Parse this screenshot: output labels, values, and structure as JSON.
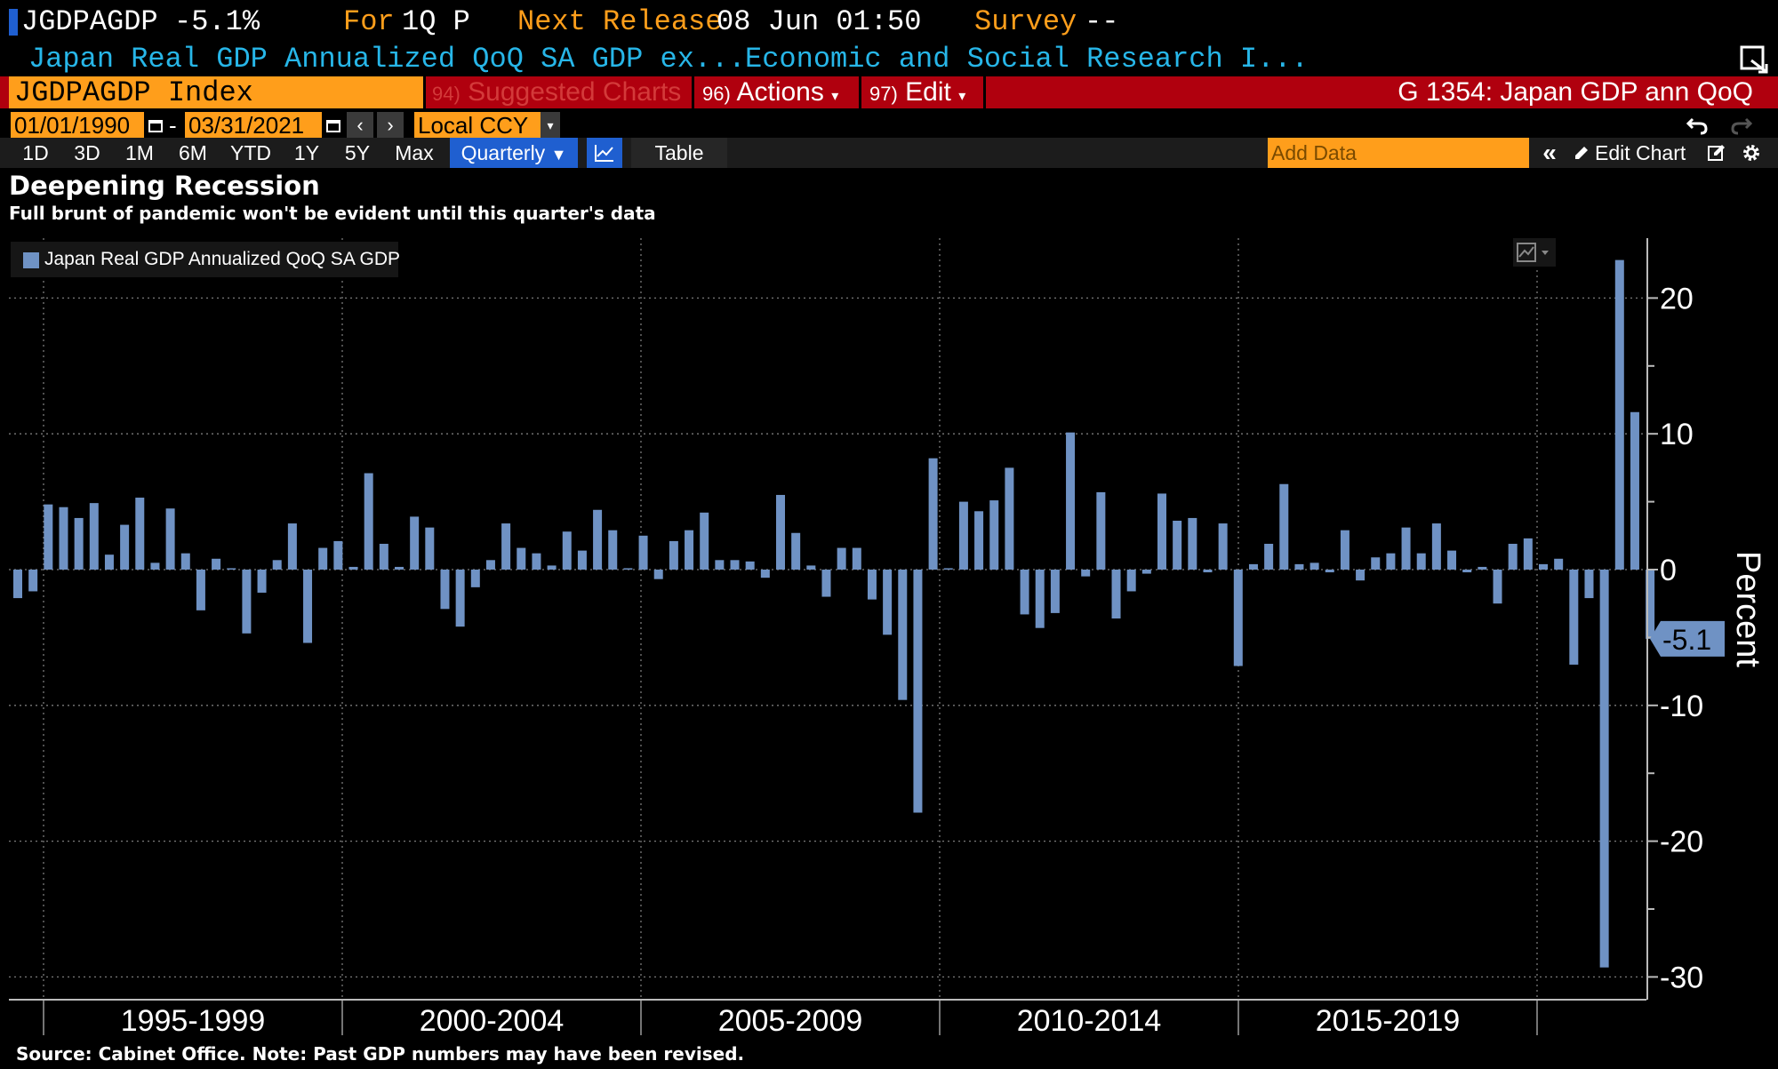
{
  "header": {
    "ticker": "JGDPAGDP",
    "value": "-5.1%",
    "for_label": "For",
    "period": "1Q P",
    "next_release_label": "Next Release",
    "next_release_value": "08 Jun 01:50",
    "survey_label": "Survey",
    "survey_value": "--",
    "description": "Japan Real GDP Annualized QoQ SA GDP ex...",
    "source_org": "Economic and Social Research I..."
  },
  "menu": {
    "security": "JGDPAGDP Index",
    "suggested_num": "94)",
    "suggested": "Suggested Charts",
    "actions_num": "96)",
    "actions": "Actions",
    "edit_num": "97)",
    "edit": "Edit",
    "chart_id": "G 1354: Japan GDP ann QoQ"
  },
  "dates": {
    "start": "01/01/1990",
    "dash": "-",
    "end": "03/31/2021",
    "currency": "Local CCY"
  },
  "toolbar": {
    "ranges": [
      "1D",
      "3D",
      "1M",
      "6M",
      "YTD",
      "1Y",
      "5Y",
      "Max"
    ],
    "frequency": "Quarterly",
    "table": "Table",
    "add_data_placeholder": "Add Data",
    "edit_chart": "Edit Chart"
  },
  "colors": {
    "bar": "#6f92c4",
    "orange": "#ff9e1b",
    "cyan": "#27b6e8",
    "menu_red": "#b0000e",
    "selected_blue": "#1f5fd0"
  },
  "icons": [
    "calendar-icon",
    "chevron-left-icon",
    "chevron-right-icon",
    "dropdown-arrow-icon",
    "line-chart-icon",
    "undo-icon",
    "redo-icon",
    "collapse-icon",
    "pencil-icon",
    "edit-icon",
    "gear-icon",
    "popout-icon"
  ],
  "chart_data": {
    "type": "bar",
    "title": "Deepening Recession",
    "subtitle": "Full brunt of pandemic won't be evident until this quarter's data",
    "legend": [
      "Japan Real GDP Annualized QoQ SA GDP"
    ],
    "ylabel": "Percent",
    "ylim": [
      -30,
      24
    ],
    "yticks": [
      20,
      10,
      0,
      -10,
      -20,
      -30
    ],
    "y_axis_position": "right",
    "grid": true,
    "x_period_labels": [
      "1995-1999",
      "2000-2004",
      "2005-2009",
      "2010-2014",
      "2015-2019"
    ],
    "last_value_label": "-5.1",
    "first_quarter": "1994Q2",
    "last_quarter": "2021Q1",
    "series": [
      {
        "name": "Japan Real GDP Annualized QoQ SA GDP",
        "values": [
          -2.1,
          -1.6,
          4.8,
          4.6,
          3.8,
          4.9,
          1.1,
          3.3,
          5.3,
          0.5,
          4.5,
          1.2,
          -3.0,
          0.8,
          0.1,
          -4.7,
          -1.7,
          0.7,
          3.4,
          -5.4,
          1.6,
          2.1,
          0.2,
          7.1,
          1.9,
          0.2,
          3.9,
          3.1,
          -2.9,
          -4.2,
          -1.3,
          0.7,
          3.4,
          1.6,
          1.2,
          0.3,
          2.8,
          1.4,
          4.4,
          2.9,
          0.1,
          2.5,
          -0.7,
          2.1,
          2.9,
          4.2,
          0.7,
          0.7,
          0.6,
          -0.6,
          5.5,
          2.7,
          0.3,
          -2.0,
          1.6,
          1.6,
          -2.2,
          -4.8,
          -9.6,
          -17.9,
          8.2,
          0.1,
          5.0,
          4.3,
          5.1,
          7.5,
          -3.3,
          -4.3,
          -3.2,
          10.1,
          -0.5,
          5.7,
          -3.6,
          -1.6,
          -0.3,
          5.6,
          3.6,
          3.8,
          -0.2,
          3.4,
          -7.1,
          0.4,
          1.9,
          6.3,
          0.4,
          0.5,
          -0.2,
          2.9,
          -0.8,
          0.9,
          1.2,
          3.1,
          1.2,
          3.4,
          1.4,
          -0.2,
          0.2,
          -2.5,
          1.9,
          2.3,
          0.4,
          0.8,
          -7.0,
          -2.1,
          -29.3,
          22.8,
          11.6,
          -5.1
        ]
      }
    ]
  }
}
